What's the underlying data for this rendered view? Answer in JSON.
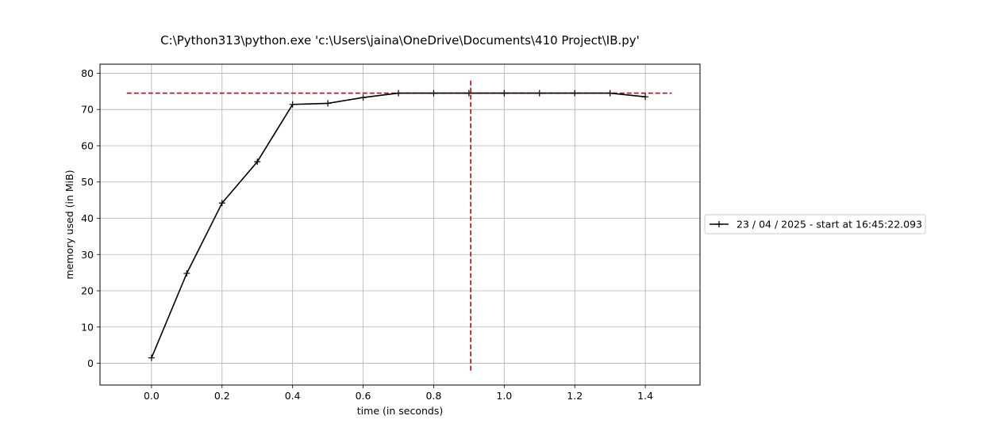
{
  "chart_data": {
    "type": "line",
    "title": "C:\\Python313\\python.exe 'c:\\Users\\jaina\\OneDrive\\Documents\\410 Project\\IB.py'",
    "xlabel": "time (in seconds)",
    "ylabel": "memory used (in MiB)",
    "xlim": [
      -0.146,
      1.555
    ],
    "ylim": [
      -6.0,
      82.5
    ],
    "xticks": [
      0.0,
      0.2,
      0.4,
      0.6,
      0.8,
      1.0,
      1.2,
      1.4
    ],
    "xtick_labels": [
      "0.0",
      "0.2",
      "0.4",
      "0.6",
      "0.8",
      "1.0",
      "1.2",
      "1.4"
    ],
    "yticks": [
      0,
      10,
      20,
      30,
      40,
      50,
      60,
      70,
      80
    ],
    "ytick_labels": [
      "0",
      "10",
      "20",
      "30",
      "40",
      "50",
      "60",
      "70",
      "80"
    ],
    "grid": true,
    "legend": "outside-right",
    "series": [
      {
        "name": "23 / 04 / 2025 - start at 16:45:22.093",
        "color": "#000000",
        "marker": "plus",
        "x": [
          0.0,
          0.1,
          0.2,
          0.3,
          0.4,
          0.5,
          0.6,
          0.7,
          0.8,
          0.9,
          1.0,
          1.1,
          1.2,
          1.3,
          1.4
        ],
        "y": [
          1.5,
          24.8,
          44.2,
          55.6,
          71.4,
          71.7,
          73.3,
          74.5,
          74.5,
          74.5,
          74.5,
          74.5,
          74.5,
          74.5,
          73.5
        ]
      }
    ],
    "annotations": [
      {
        "type": "hline",
        "y": 74.5,
        "x_from": -0.07,
        "x_to": 1.475,
        "color": "#cc0000",
        "style": "dashed"
      },
      {
        "type": "vline",
        "x": 0.905,
        "y_from": -2.0,
        "y_to": 78.0,
        "color": "#cc0000",
        "style": "dashed"
      }
    ]
  }
}
